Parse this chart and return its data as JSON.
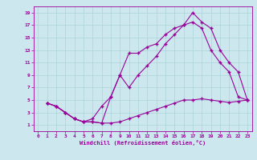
{
  "xlabel": "Windchill (Refroidissement éolien,°C)",
  "bg_color": "#cce8ee",
  "grid_color": "#aad4da",
  "line_color": "#990099",
  "xlim": [
    -0.5,
    23.5
  ],
  "ylim": [
    0,
    20
  ],
  "xticks": [
    0,
    1,
    2,
    3,
    4,
    5,
    6,
    7,
    8,
    9,
    10,
    11,
    12,
    13,
    14,
    15,
    16,
    17,
    18,
    19,
    20,
    21,
    22,
    23
  ],
  "yticks": [
    1,
    3,
    5,
    7,
    9,
    11,
    13,
    15,
    17,
    19
  ],
  "line1_x": [
    1,
    2,
    3,
    4,
    5,
    6,
    7,
    8,
    9,
    10,
    11,
    12,
    13,
    14,
    15,
    16,
    17,
    18,
    19,
    20,
    21,
    22,
    23
  ],
  "line1_y": [
    4.5,
    4.0,
    3.0,
    2.0,
    1.5,
    1.5,
    1.3,
    1.3,
    1.5,
    2.0,
    2.5,
    3.0,
    3.5,
    4.0,
    4.5,
    5.0,
    5.0,
    5.2,
    5.0,
    4.8,
    4.6,
    4.8,
    5.0
  ],
  "line2_x": [
    1,
    2,
    3,
    4,
    5,
    6,
    7,
    8,
    9,
    10,
    11,
    12,
    13,
    14,
    15,
    16,
    17,
    18,
    19,
    20,
    21,
    22,
    23
  ],
  "line2_y": [
    4.5,
    4.0,
    3.0,
    2.0,
    1.5,
    1.5,
    1.3,
    5.5,
    9.0,
    7.0,
    9.0,
    10.5,
    12.0,
    14.0,
    15.5,
    17.0,
    17.5,
    16.5,
    13.0,
    11.0,
    9.5,
    5.5,
    5.0
  ],
  "line3_x": [
    1,
    2,
    3,
    4,
    5,
    6,
    7,
    8,
    9,
    10,
    11,
    12,
    13,
    14,
    15,
    16,
    17,
    18,
    19,
    20,
    21,
    22,
    23
  ],
  "line3_y": [
    4.5,
    4.0,
    3.0,
    2.0,
    1.5,
    2.0,
    4.0,
    5.5,
    9.0,
    12.5,
    12.5,
    13.5,
    14.0,
    15.5,
    16.5,
    17.0,
    19.0,
    17.5,
    16.5,
    13.0,
    11.0,
    9.5,
    5.0
  ]
}
